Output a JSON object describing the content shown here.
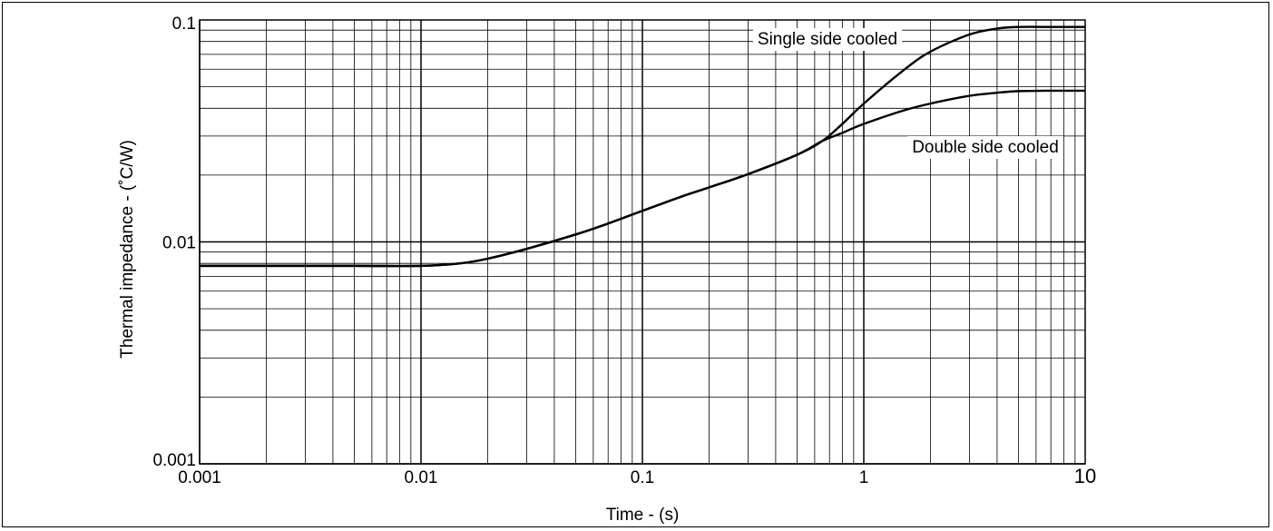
{
  "chart_data": {
    "type": "line",
    "title": "",
    "xlabel": "Time - (s)",
    "ylabel": "Thermal impedance - (˚C/W)",
    "xscale": "log",
    "yscale": "log",
    "xlim": [
      0.001,
      10
    ],
    "ylim": [
      0.001,
      0.1
    ],
    "grid": true,
    "x_ticks": [
      {
        "value": 0.001,
        "label": "0.001"
      },
      {
        "value": 0.01,
        "label": "0.01"
      },
      {
        "value": 0.1,
        "label": "0.1"
      },
      {
        "value": 1,
        "label": "1"
      },
      {
        "value": 10,
        "label": "10"
      }
    ],
    "y_ticks": [
      {
        "value": 0.001,
        "label": "0.001"
      },
      {
        "value": 0.01,
        "label": "0.01"
      },
      {
        "value": 0.1,
        "label": "0.1"
      }
    ],
    "series": [
      {
        "name": "Single side cooled",
        "x": [
          0.001,
          0.002,
          0.005,
          0.01,
          0.015,
          0.02,
          0.03,
          0.05,
          0.07,
          0.1,
          0.15,
          0.2,
          0.3,
          0.5,
          0.65,
          0.8,
          1,
          1.5,
          2,
          3,
          4,
          5,
          7,
          10
        ],
        "y": [
          0.0078,
          0.0078,
          0.0078,
          0.0078,
          0.008,
          0.0084,
          0.0093,
          0.0108,
          0.0121,
          0.0138,
          0.016,
          0.0176,
          0.0202,
          0.0247,
          0.0285,
          0.034,
          0.042,
          0.059,
          0.072,
          0.086,
          0.0915,
          0.093,
          0.093,
          0.093
        ]
      },
      {
        "name": "Double side cooled",
        "x": [
          0.001,
          0.002,
          0.005,
          0.01,
          0.015,
          0.02,
          0.03,
          0.05,
          0.07,
          0.1,
          0.15,
          0.2,
          0.3,
          0.5,
          0.65,
          0.8,
          1,
          1.5,
          2,
          3,
          4,
          5,
          7,
          10
        ],
        "y": [
          0.0078,
          0.0078,
          0.0078,
          0.0078,
          0.008,
          0.0084,
          0.0093,
          0.0108,
          0.0121,
          0.0138,
          0.016,
          0.0176,
          0.0202,
          0.0247,
          0.0285,
          0.031,
          0.034,
          0.039,
          0.042,
          0.0455,
          0.047,
          0.0478,
          0.048,
          0.048
        ]
      }
    ],
    "annotations": [
      {
        "text": "Single side cooled",
        "series": "Single side cooled"
      },
      {
        "text": "Double side cooled",
        "series": "Double side cooled"
      }
    ],
    "colors": {
      "line": "#000000",
      "grid": "#000000",
      "background": "#ffffff"
    }
  }
}
